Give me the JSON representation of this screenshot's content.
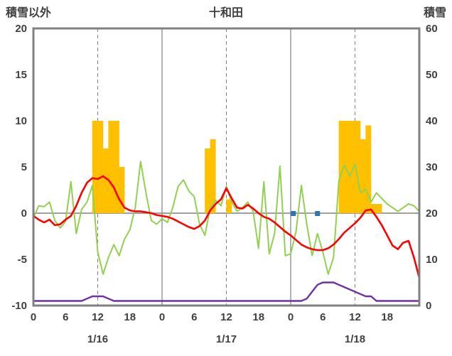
{
  "chart_data": {
    "type": "combo",
    "title": "十和田",
    "x_axis": {
      "hours_total": 72,
      "tick_interval_hours": 6,
      "tick_labels": [
        "0",
        "6",
        "12",
        "18",
        "0",
        "6",
        "12",
        "18",
        "0",
        "6",
        "12",
        "18"
      ],
      "date_labels": [
        "1/16",
        "1/17",
        "1/18"
      ]
    },
    "left_axis": {
      "title": "積雪以外",
      "min": -10,
      "max": 20,
      "ticks": [
        "20",
        "15",
        "10",
        "5",
        "0",
        "-5",
        "-10"
      ]
    },
    "right_axis": {
      "title": "積雪",
      "min": 0,
      "max": 60,
      "ticks": [
        "60",
        "50",
        "40",
        "30",
        "20",
        "10",
        "0"
      ]
    },
    "gridlines": {
      "vertical_dashed_hours": [
        12,
        36,
        60
      ],
      "vertical_solid_hours": [
        24,
        48
      ],
      "horizontal_zero_line": true
    },
    "series": {
      "orange_bars": {
        "type": "bar",
        "axis": "left",
        "color": "#FFC000",
        "values": [
          0,
          0,
          0,
          0,
          0,
          0,
          0,
          0,
          0,
          0,
          0,
          10,
          10,
          7,
          10,
          10,
          5,
          0,
          0,
          0,
          0,
          0,
          0,
          0,
          0,
          0,
          0,
          0,
          0,
          0,
          0,
          0,
          7,
          8,
          0,
          0,
          1.5,
          0,
          0,
          0,
          0,
          0,
          0,
          0,
          0,
          0,
          0,
          0,
          0,
          0,
          0,
          0,
          0,
          0,
          0,
          0,
          0,
          10,
          10,
          10,
          10,
          8,
          9.5,
          1,
          1,
          0,
          0,
          0,
          0,
          0,
          0,
          0
        ]
      },
      "red_line": {
        "type": "line",
        "axis": "left",
        "color": "#FF0000",
        "values": [
          -0.3,
          -0.7,
          -1.0,
          -0.7,
          -1.3,
          -1.2,
          -0.7,
          -0.3,
          0.8,
          2.2,
          3.3,
          3.8,
          3.7,
          4.0,
          3.6,
          2.8,
          1.5,
          0.6,
          0.3,
          0.2,
          0.2,
          0.1,
          0.0,
          -0.2,
          -0.3,
          -0.4,
          -0.6,
          -0.9,
          -1.2,
          -1.5,
          -1.7,
          -1.4,
          -0.8,
          0.3,
          1.0,
          1.5,
          2.7,
          1.6,
          0.6,
          0.5,
          0.9,
          0.5,
          0.0,
          -0.4,
          -0.6,
          -1.0,
          -1.5,
          -2.0,
          -2.4,
          -2.9,
          -3.4,
          -3.7,
          -3.9,
          -4.0,
          -4.0,
          -3.8,
          -3.4,
          -2.8,
          -2.1,
          -1.6,
          -1.1,
          -0.5,
          0.3,
          0.4,
          -0.4,
          -1.3,
          -2.4,
          -3.5,
          -3.9,
          -3.2,
          -3.0,
          -4.8,
          -7.0
        ]
      },
      "green_line": {
        "type": "line",
        "axis": "left",
        "color": "#92D050",
        "values": [
          -0.5,
          0.8,
          0.7,
          1.2,
          -0.8,
          -1.6,
          -0.9,
          3.4,
          -2.2,
          0.4,
          1.2,
          3.0,
          -4.2,
          -6.6,
          -4.8,
          -3.4,
          -4.6,
          -2.8,
          -1.8,
          0.6,
          5.6,
          2.2,
          -0.8,
          -1.2,
          -0.6,
          -1.0,
          0.6,
          2.9,
          3.6,
          2.4,
          1.8,
          -1.2,
          -2.4,
          0.6,
          1.4,
          0.8,
          2.9,
          1.2,
          0.2,
          0.6,
          1.2,
          0.2,
          -3.8,
          3.4,
          -4.4,
          -2.2,
          5.1,
          -4.6,
          -4.4,
          -2.0,
          3.0,
          -1.2,
          -4.6,
          -2.2,
          -4.2,
          -6.6,
          -4.8,
          3.6,
          5.2,
          4.0,
          5.3,
          2.2,
          2.6,
          1.2,
          2.2,
          1.6,
          1.0,
          0.6,
          0.2,
          0.6,
          1.0,
          0.8,
          0.2
        ]
      },
      "purple_line": {
        "type": "line",
        "axis": "right",
        "color": "#7030A0",
        "values": [
          1,
          1,
          1,
          1,
          1,
          1,
          1,
          1,
          1,
          1,
          1.5,
          2,
          2,
          2,
          1.5,
          1,
          1,
          1,
          1,
          1,
          1,
          1,
          1,
          1,
          1,
          1,
          1,
          1,
          1,
          1,
          1,
          1,
          1,
          1,
          1,
          1,
          1,
          1,
          1,
          1,
          1,
          1,
          1,
          1,
          1,
          1,
          1,
          1,
          1,
          1,
          1,
          1.5,
          3,
          4.5,
          5,
          5,
          5,
          4.5,
          4,
          3.5,
          3,
          2.5,
          2,
          2,
          1,
          1,
          1,
          1,
          1,
          1,
          1,
          1,
          1
        ]
      },
      "blue_markers": {
        "type": "point",
        "axis": "left",
        "color": "#2E75B6",
        "hours": [
          48.5,
          53
        ],
        "value": 0
      }
    }
  },
  "colors": {
    "grid": "#808080",
    "border": "#808080",
    "text": "#3F3F3F",
    "background": "#FFFFFF"
  }
}
